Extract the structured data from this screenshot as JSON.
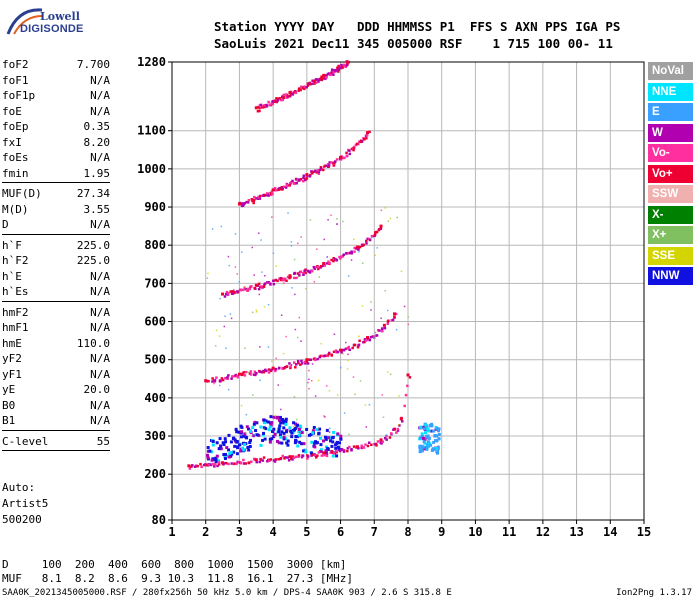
{
  "logo": {
    "line1": "Lowell",
    "line2": "DIGISONDE"
  },
  "header": {
    "line1": "Station YYYY DAY   DDD HHMMSS P1  FFS S AXN PPS IGA PS",
    "line2": "SaoLuis 2021 Dec11 345 005000 RSF    1 715 100 00- 11"
  },
  "params": [
    {
      "name": "foF2",
      "value": "7.700"
    },
    {
      "name": "foF1",
      "value": "N/A"
    },
    {
      "name": "foF1p",
      "value": "N/A"
    },
    {
      "name": "foE",
      "value": "N/A"
    },
    {
      "name": "foEp",
      "value": "0.35"
    },
    {
      "name": "fxI",
      "value": "8.20"
    },
    {
      "name": "foEs",
      "value": "N/A"
    },
    {
      "name": "fmin",
      "value": "1.95"
    },
    {
      "name": "MUF(D)",
      "value": "27.34"
    },
    {
      "name": "M(D)",
      "value": "3.55"
    },
    {
      "name": "D",
      "value": "N/A"
    },
    {
      "name": "h`F",
      "value": "225.0"
    },
    {
      "name": "h`F2",
      "value": "225.0"
    },
    {
      "name": "h`E",
      "value": "N/A"
    },
    {
      "name": "h`Es",
      "value": "N/A"
    },
    {
      "name": "hmF2",
      "value": "N/A"
    },
    {
      "name": "hmF1",
      "value": "N/A"
    },
    {
      "name": "hmE",
      "value": "110.0"
    },
    {
      "name": "yF2",
      "value": "N/A"
    },
    {
      "name": "yF1",
      "value": "N/A"
    },
    {
      "name": "yE",
      "value": "20.0"
    },
    {
      "name": "B0",
      "value": "N/A"
    },
    {
      "name": "B1",
      "value": "N/A"
    },
    {
      "name": "C-level",
      "value": "55"
    }
  ],
  "auto": {
    "line1": "Auto:",
    "line2": "Artist5",
    "line3": "500200"
  },
  "legend": [
    {
      "label": "NoVal",
      "color": "#a0a0a0"
    },
    {
      "label": "NNE",
      "color": "#00e5ff"
    },
    {
      "label": "E",
      "color": "#3aa0ff"
    },
    {
      "label": "W",
      "color": "#b000b0"
    },
    {
      "label": "Vo-",
      "color": "#ff2fa0"
    },
    {
      "label": "Vo+",
      "color": "#ee0033"
    },
    {
      "label": "SSW",
      "color": "#f0b0b0"
    },
    {
      "label": "X-",
      "color": "#008000"
    },
    {
      "label": "X+",
      "color": "#80c060"
    },
    {
      "label": "SSE",
      "color": "#d4d400"
    },
    {
      "label": "NNW",
      "color": "#1010e0"
    }
  ],
  "dmuf": {
    "d_row": "D     100  200  400  600  800  1000  1500  3000 [km]",
    "muf_row": "MUF   8.1  8.2  8.6  9.3 10.3  11.8  16.1  27.3 [MHz]"
  },
  "footer": "SAA0K_2021345005000.RSF / 280fx256h 50 kHz 5.0 km / DPS-4 SAA0K 903 / 2.6 S 315.8 E",
  "version": "Ion2Png 1.3.17",
  "chart_data": {
    "type": "scatter",
    "title": "",
    "xlabel": "",
    "ylabel": "",
    "xlim": [
      1,
      15
    ],
    "ylim": [
      80,
      1280
    ],
    "xticks": [
      1,
      2,
      3,
      4,
      5,
      6,
      7,
      8,
      9,
      10,
      11,
      12,
      13,
      14,
      15
    ],
    "yticks": [
      80,
      200,
      300,
      400,
      500,
      600,
      700,
      800,
      900,
      1000,
      1100,
      1280
    ],
    "grid": true,
    "legend_position": "right",
    "series": [
      {
        "name": "Vo+",
        "trace": "F2 1st hop",
        "x": [
          1.5,
          2.5,
          3.5,
          4.5,
          5.5,
          6.5,
          7.2,
          7.6,
          7.8,
          8.0
        ],
        "y": [
          222,
          230,
          238,
          246,
          256,
          272,
          290,
          318,
          345,
          460
        ]
      },
      {
        "name": "Vo+",
        "trace": "F2 2nd hop",
        "x": [
          2.0,
          3.0,
          4.0,
          5.0,
          6.0,
          6.8,
          7.3,
          7.6
        ],
        "y": [
          445,
          462,
          478,
          500,
          525,
          558,
          590,
          620
        ]
      },
      {
        "name": "Vo+",
        "trace": "F2 3rd hop",
        "x": [
          2.5,
          3.5,
          4.5,
          5.5,
          6.5,
          7.2
        ],
        "y": [
          672,
          695,
          720,
          752,
          795,
          850
        ]
      },
      {
        "name": "Vo+",
        "trace": "F2 4th hop",
        "x": [
          3.0,
          4.0,
          5.0,
          6.0,
          6.8
        ],
        "y": [
          908,
          945,
          985,
          1030,
          1095
        ]
      },
      {
        "name": "Vo+",
        "trace": "F2 5th hop",
        "x": [
          3.5,
          4.5,
          5.5,
          6.2
        ],
        "y": [
          1160,
          1200,
          1245,
          1280
        ]
      },
      {
        "name": "NNW",
        "trace": "spread",
        "x": [
          2.0,
          3.0,
          4.0,
          5.0,
          6.0
        ],
        "y": [
          260,
          300,
          330,
          300,
          280
        ]
      },
      {
        "name": "E",
        "trace": "spread",
        "x": [
          8.3,
          8.6,
          8.9
        ],
        "y": [
          300,
          310,
          295
        ]
      }
    ]
  }
}
